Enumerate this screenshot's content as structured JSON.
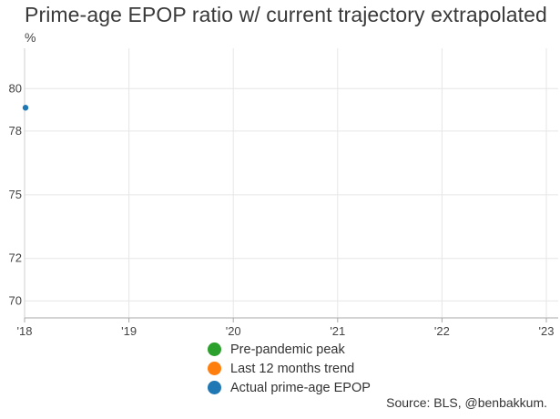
{
  "chart_data": {
    "type": "line",
    "title": "Prime-age EPOP ratio w/ current trajectory extrapolated",
    "ylabel": "%",
    "xlabel": "",
    "x_ticks": [
      "'18",
      "'19",
      "'20",
      "'21",
      "'22",
      "'23"
    ],
    "y_ticks": [
      70,
      72,
      75,
      78,
      80
    ],
    "xlim": [
      2018,
      2023
    ],
    "ylim": [
      69.2,
      81.9
    ],
    "grid": true,
    "legend_position": "bottom-center",
    "series": [
      {
        "name": "Pre-pandemic peak",
        "color": "#2ca02c",
        "points": []
      },
      {
        "name": "Last 12 months trend",
        "color": "#ff7f0e",
        "points": []
      },
      {
        "name": "Actual prime-age EPOP",
        "color": "#1f77b4",
        "points": [
          {
            "x": 2018.0,
            "y": 79.1
          }
        ]
      }
    ],
    "source": "Source: BLS, @benbakkum."
  }
}
